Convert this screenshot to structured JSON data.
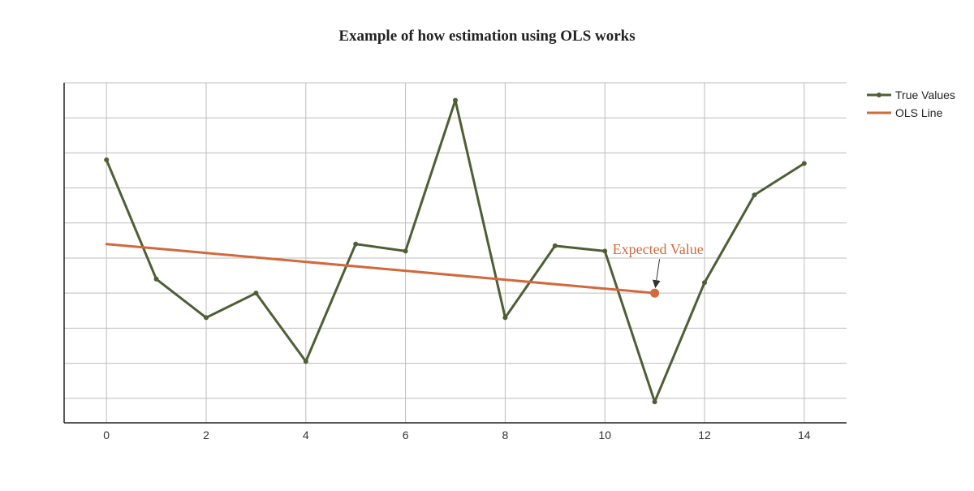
{
  "chart_data": {
    "type": "line",
    "title": "Example of how estimation using OLS works",
    "xlabel": "",
    "ylabel": "",
    "xlim": [
      -0.85,
      14.85
    ],
    "ylim": [
      -0.7,
      9.0
    ],
    "x_ticks": [
      0,
      2,
      4,
      6,
      8,
      10,
      12,
      14
    ],
    "y_gridlines": [
      0,
      1,
      2,
      3,
      4,
      5,
      6,
      7,
      8,
      9
    ],
    "y_tick_labels_shown": false,
    "grid": true,
    "legend_position": "top-right",
    "series": [
      {
        "name": "True Values",
        "color": "#4e5e35",
        "marker": "circle",
        "x": [
          0,
          1,
          2,
          3,
          4,
          5,
          6,
          7,
          8,
          9,
          10,
          11,
          12,
          13,
          14
        ],
        "y": [
          6.8,
          3.4,
          2.3,
          3.0,
          1.05,
          4.4,
          4.2,
          8.5,
          2.3,
          4.35,
          4.2,
          -0.1,
          3.3,
          5.8,
          6.7
        ]
      },
      {
        "name": "OLS Line",
        "color": "#d2693c",
        "marker": "none",
        "x": [
          0,
          11
        ],
        "y": [
          4.4,
          3.0
        ]
      }
    ],
    "annotations": [
      {
        "text": "Expected Value",
        "color": "#d2693c",
        "point": {
          "x": 11,
          "y": 3.0
        },
        "arrow": true
      }
    ]
  }
}
